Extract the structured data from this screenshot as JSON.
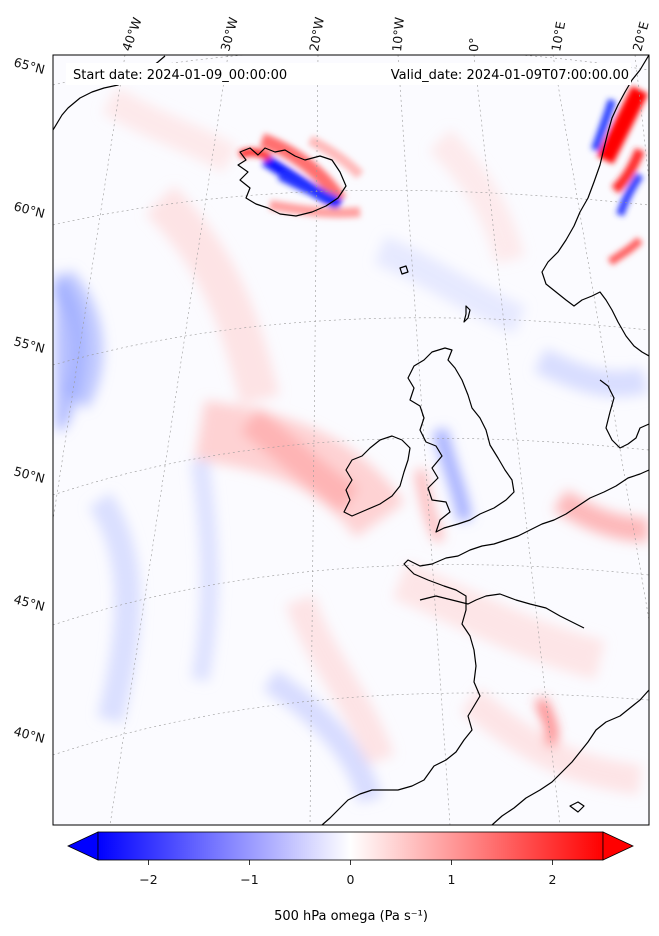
{
  "map": {
    "start_date": "Start date: 2024-01-09_00:00:00",
    "valid_date": "Valid_date: 2024-01-09T07:00:00.00",
    "lon_labels": [
      "40°W",
      "30°W",
      "20°W",
      "10°W",
      "0°",
      "10°E",
      "20°E"
    ],
    "lat_labels": [
      "65°N",
      "60°N",
      "55°N",
      "50°N",
      "45°N",
      "40°N"
    ],
    "colors": {
      "negative": "#0000ff",
      "neutral": "#ffffff",
      "positive": "#ff0000",
      "coast": "#000000"
    }
  },
  "colorbar": {
    "label": "500 hPa omega (Pa s⁻¹)",
    "ticks": [
      {
        "value": -2,
        "label": "−2"
      },
      {
        "value": -1,
        "label": "−1"
      },
      {
        "value": 0,
        "label": "0"
      },
      {
        "value": 1,
        "label": "1"
      },
      {
        "value": 2,
        "label": "2"
      }
    ],
    "vmin": -2.5,
    "vmax": 2.5
  }
}
